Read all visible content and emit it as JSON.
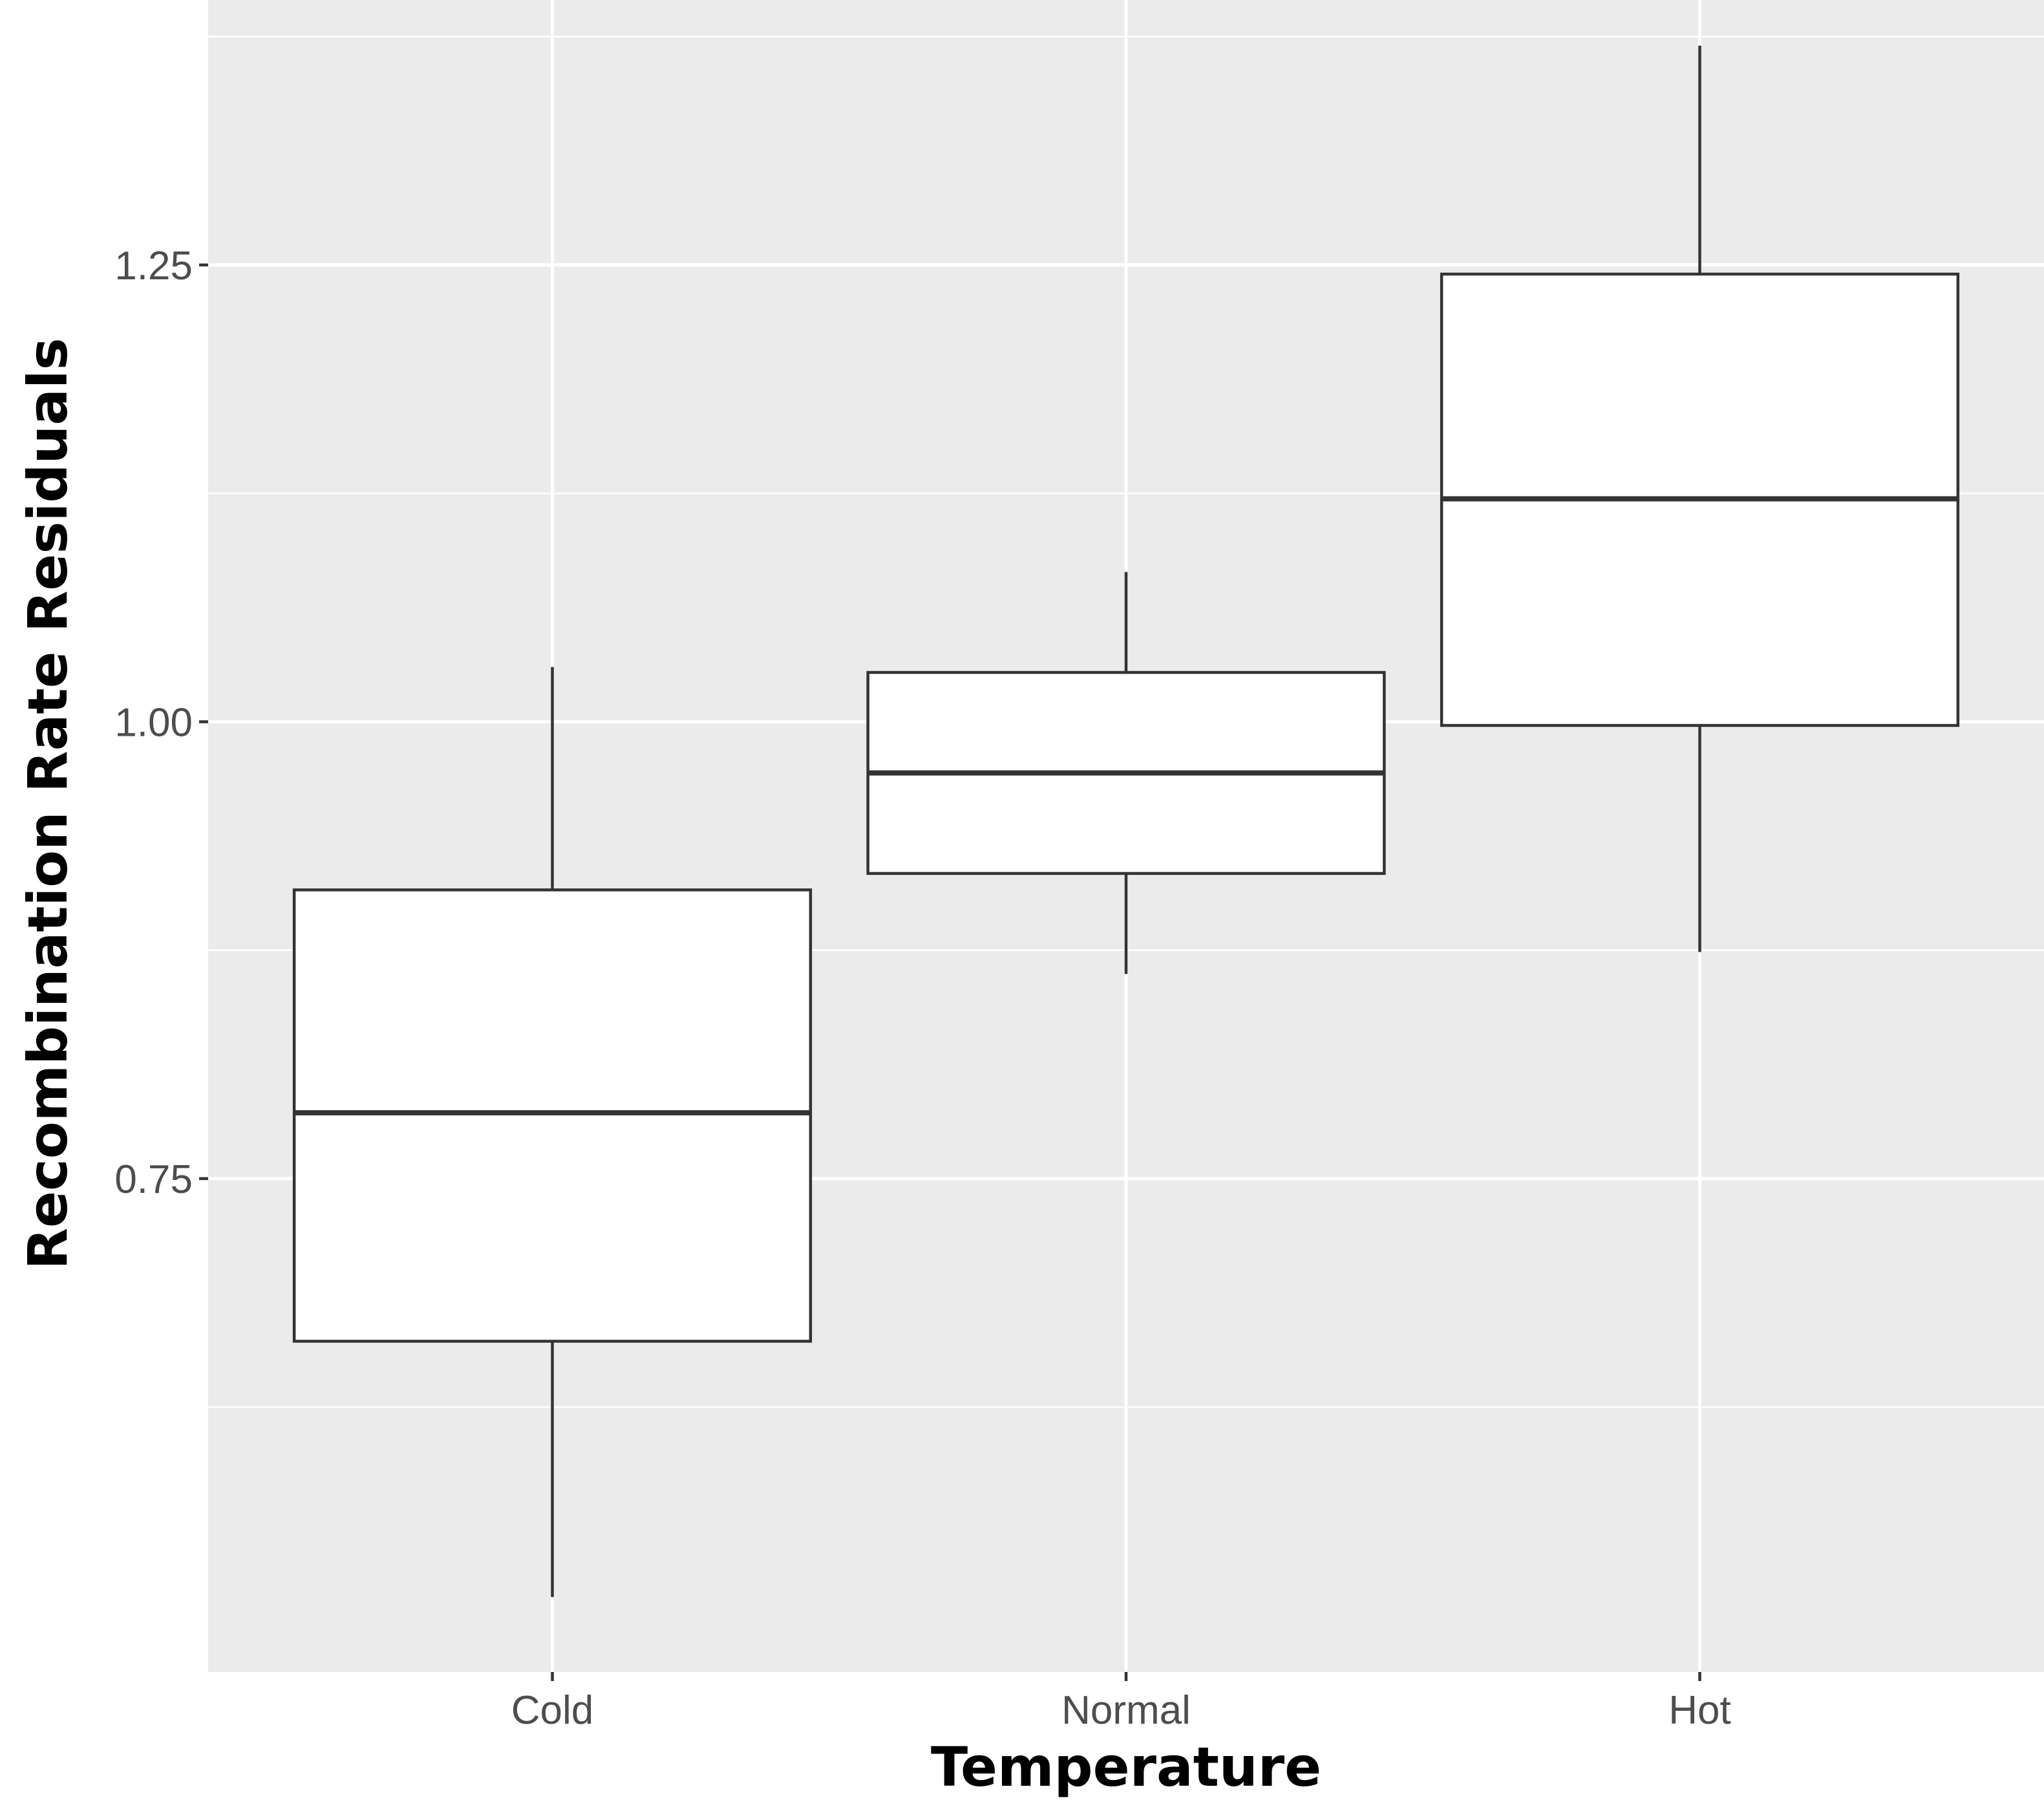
{
  "chart_data": {
    "type": "boxplot",
    "title": "",
    "xlabel": "Temperature",
    "ylabel": "Recombination Rate Residuals",
    "ylim": [
      0.48,
      1.395
    ],
    "y_ticks": [
      0.75,
      1.0,
      1.25
    ],
    "y_tick_labels": [
      "0.75",
      "1.00",
      "1.25"
    ],
    "y_minor_ticks": [
      0.625,
      0.875,
      1.125,
      1.375
    ],
    "grid": true,
    "legend": "none",
    "categories": [
      "Cold",
      "Normal",
      "Hot"
    ],
    "boxes": [
      {
        "category": "Cold",
        "whisker_low": 0.521,
        "q1": 0.661,
        "median": 0.786,
        "q3": 0.908,
        "whisker_high": 1.03
      },
      {
        "category": "Normal",
        "whisker_low": 0.862,
        "q1": 0.917,
        "median": 0.972,
        "q3": 1.027,
        "whisker_high": 1.082
      },
      {
        "category": "Hot",
        "whisker_low": 0.874,
        "q1": 0.998,
        "median": 1.122,
        "q3": 1.245,
        "whisker_high": 1.37
      }
    ],
    "colors": {
      "panel_background": "#ebebeb",
      "grid": "#ffffff",
      "box_fill": "#ffffff",
      "box_stroke": "#333333",
      "tick_text": "#4d4d4d",
      "axis_title": "#000000"
    }
  }
}
